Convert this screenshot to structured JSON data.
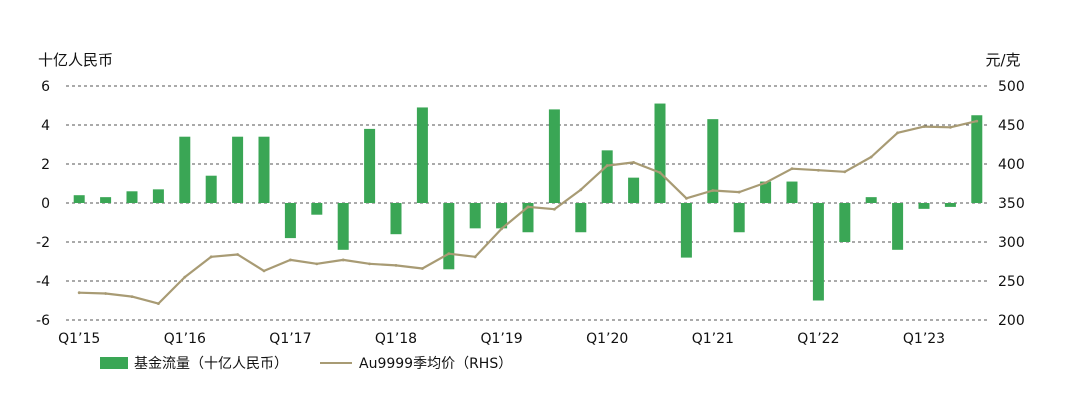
{
  "chart_data": {
    "type": "bar",
    "left_axis_unit": "十亿人民币",
    "right_axis_unit": "元/克",
    "x_labels": [
      "Q1’15",
      "Q1’16",
      "Q1’17",
      "Q1’18",
      "Q1’19",
      "Q1’20",
      "Q1’21",
      "Q1’22",
      "Q1’23"
    ],
    "left_ticks": [
      "6",
      "4",
      "2",
      "0",
      "-2",
      "-4",
      "-6"
    ],
    "right_ticks": [
      "500",
      "450",
      "400",
      "350",
      "300",
      "250",
      "200"
    ],
    "ylim_left": [
      -6,
      6
    ],
    "ylim_right": [
      200,
      500
    ],
    "categories": [
      "2015Q1",
      "2015Q2",
      "2015Q3",
      "2015Q4",
      "2016Q1",
      "2016Q2",
      "2016Q3",
      "2016Q4",
      "2017Q1",
      "2017Q2",
      "2017Q3",
      "2017Q4",
      "2018Q1",
      "2018Q2",
      "2018Q3",
      "2018Q4",
      "2019Q1",
      "2019Q2",
      "2019Q3",
      "2019Q4",
      "2020Q1",
      "2020Q2",
      "2020Q3",
      "2020Q4",
      "2021Q1",
      "2021Q2",
      "2021Q3",
      "2021Q4",
      "2022Q1",
      "2022Q2",
      "2022Q3",
      "2022Q4",
      "2023Q1",
      "2023Q2",
      "2023Q3"
    ],
    "series": [
      {
        "name": "基金流量（十亿人民币）",
        "kind": "bar",
        "axis": "left",
        "color": "#3aa655",
        "values": [
          0.4,
          0.3,
          0.6,
          0.7,
          3.4,
          1.4,
          3.4,
          3.4,
          -1.8,
          -0.6,
          -2.4,
          3.8,
          -1.6,
          4.9,
          -3.4,
          -1.3,
          -1.3,
          -1.5,
          4.8,
          -1.5,
          2.7,
          1.3,
          5.1,
          -2.8,
          4.3,
          -1.5,
          1.1,
          1.1,
          -5.0,
          -2.0,
          0.3,
          -2.4,
          -0.3,
          -0.2,
          4.5
        ]
      },
      {
        "name": "Au9999季均价（RHS）",
        "kind": "line",
        "axis": "right",
        "color": "#a89b74",
        "values": [
          235,
          234,
          230,
          221,
          255,
          281,
          284,
          263,
          277,
          272,
          277,
          272,
          270,
          266,
          285,
          281,
          317,
          345,
          342,
          367,
          398,
          402,
          389,
          356,
          366,
          364,
          376,
          394,
          392,
          390,
          409,
          440,
          448,
          447,
          455
        ]
      }
    ],
    "grid": true,
    "legend_position": "bottom-left"
  }
}
